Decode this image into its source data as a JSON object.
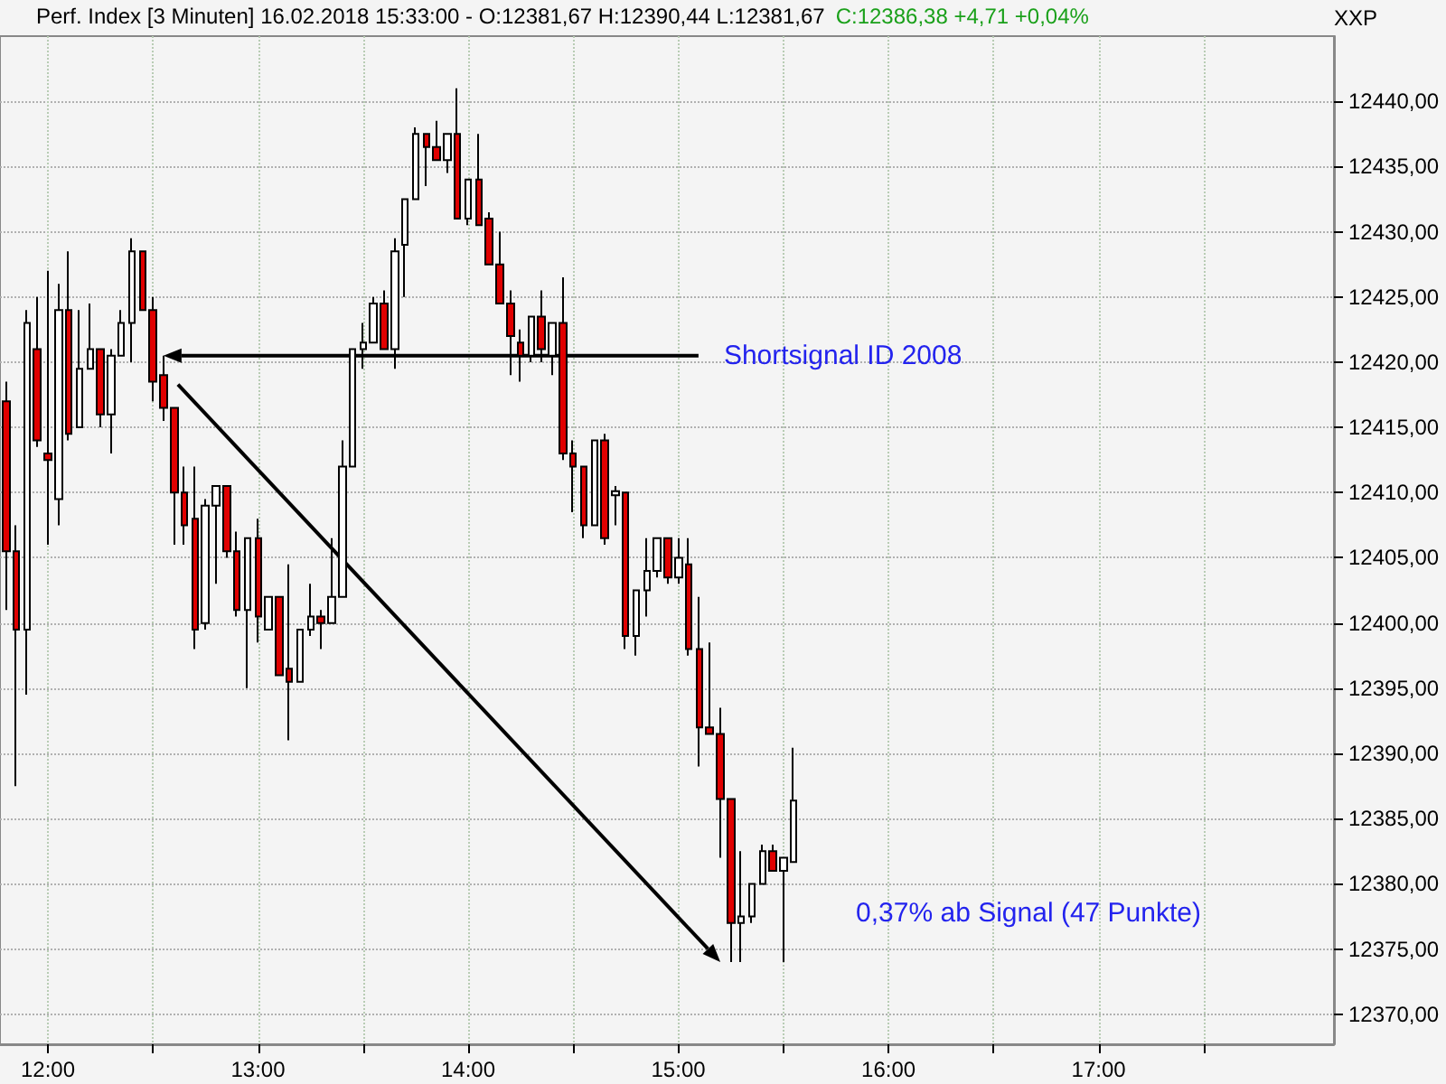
{
  "chart_data": {
    "type": "candlestick",
    "title": "Perf. Index [3 Minuten] 16.02.2018 15:33:00 - O:12381,67 H:12390,44 L:12381,67",
    "subtitle": "C:12386,38 +4,71 +0,04%",
    "ylabel": "XXP",
    "x": [
      11.8,
      11.85,
      11.9,
      11.95,
      12,
      12.05,
      12.1,
      12.15,
      12.2,
      12.25,
      12.3,
      12.35,
      12.4,
      12.45,
      12.5,
      12.55,
      12.6,
      12.65,
      12.7,
      12.75,
      12.8,
      12.85,
      12.9,
      12.95,
      13,
      13.05,
      13.1,
      13.15,
      13.2,
      13.25,
      13.3,
      13.35,
      13.4,
      13.45,
      13.5,
      13.55,
      13.6,
      13.65,
      13.7,
      13.75,
      13.8,
      13.85,
      13.9,
      13.95,
      14,
      14.05,
      14.1,
      14.15,
      14.2,
      14.25,
      14.3,
      14.35,
      14.4,
      14.45,
      14.5,
      14.55,
      14.6,
      14.65,
      14.7,
      14.75,
      14.8,
      14.85,
      14.9,
      14.95,
      15,
      15.05,
      15.1,
      15.15,
      15.2,
      15.25,
      15.3,
      15.35,
      15.4,
      15.45,
      15.5,
      15.55
    ],
    "ohlc": [
      [
        12417,
        12418.5,
        12401,
        12405.5
      ],
      [
        12405.5,
        12407.5,
        12387.5,
        12399.5
      ],
      [
        12399.5,
        12424,
        12394.5,
        12423
      ],
      [
        12421,
        12425,
        12413.5,
        12414
      ],
      [
        12413,
        12427,
        12406,
        12412.5
      ],
      [
        12409.5,
        12426,
        12407.5,
        12424
      ],
      [
        12424,
        12428.5,
        12414,
        12414.5
      ],
      [
        12415,
        12424,
        12415,
        12419.5
      ],
      [
        12419.5,
        12424.5,
        12419.5,
        12421
      ],
      [
        12421,
        12421,
        12415,
        12416
      ],
      [
        12416,
        12421,
        12413,
        12420.5
      ],
      [
        12420.5,
        12424,
        12420.5,
        12423
      ],
      [
        12423,
        12429.5,
        12420,
        12428.5
      ],
      [
        12428.5,
        12428.5,
        12424,
        12424
      ],
      [
        12424,
        12425,
        12417,
        12418.5
      ],
      [
        12419,
        12420.5,
        12415.5,
        12416.5
      ],
      [
        12416.5,
        12416.5,
        12406,
        12410
      ],
      [
        12410,
        12412,
        12406,
        12407.5
      ],
      [
        12408,
        12412,
        12398,
        12399.5
      ],
      [
        12400,
        12409.5,
        12399.5,
        12409
      ],
      [
        12409,
        12410.5,
        12403,
        12410.5
      ],
      [
        12410.5,
        12410.5,
        12405,
        12405.5
      ],
      [
        12405.5,
        12407,
        12400.5,
        12401
      ],
      [
        12401,
        12406.5,
        12395,
        12406.5
      ],
      [
        12406.5,
        12408,
        12398.5,
        12400.5
      ],
      [
        12399.5,
        12402,
        12399.5,
        12402
      ],
      [
        12402,
        12402,
        12396,
        12396
      ],
      [
        12396.5,
        12404.5,
        12391,
        12395.5
      ],
      [
        12395.5,
        12399.5,
        12395.5,
        12399.5
      ],
      [
        12399.5,
        12403,
        12399,
        12400.5
      ],
      [
        12400.5,
        12401,
        12398,
        12400
      ],
      [
        12400,
        12406.5,
        12400,
        12402
      ],
      [
        12402,
        12414,
        12402,
        12412
      ],
      [
        12412,
        12421,
        12412,
        12421
      ],
      [
        12421,
        12423,
        12419.5,
        12421.5
      ],
      [
        12421.5,
        12425,
        12421.5,
        12424.5
      ],
      [
        12424.5,
        12425.5,
        12421,
        12421
      ],
      [
        12421,
        12429.5,
        12419.5,
        12428.5
      ],
      [
        12429,
        12432.5,
        12425,
        12432.5
      ],
      [
        12432.5,
        12438,
        12432.5,
        12437.5
      ],
      [
        12437.5,
        12437.5,
        12433.5,
        12436.5
      ],
      [
        12436.5,
        12438.5,
        12435.5,
        12435.5
      ],
      [
        12435.5,
        12437.5,
        12434.5,
        12437.5
      ],
      [
        12437.5,
        12441,
        12431,
        12431
      ],
      [
        12431,
        12434,
        12430.5,
        12434
      ],
      [
        12434,
        12437.5,
        12430.5,
        12430.5
      ],
      [
        12431,
        12431.5,
        12427.5,
        12427.5
      ],
      [
        12427.5,
        12430,
        12424.5,
        12424.5
      ],
      [
        12424.5,
        12425.5,
        12419,
        12422
      ],
      [
        12421.5,
        12422.5,
        12418.5,
        12420.5
      ],
      [
        12420.5,
        12423.5,
        12420,
        12423.5
      ],
      [
        12423.5,
        12425.5,
        12420,
        12421
      ],
      [
        12420.5,
        12423,
        12419,
        12423
      ],
      [
        12423,
        12426.5,
        12412.5,
        12413
      ],
      [
        12413,
        12414,
        12408.5,
        12412
      ],
      [
        12412,
        12412,
        12406.5,
        12407.5
      ],
      [
        12407.5,
        12414,
        12407.5,
        12414
      ],
      [
        12414,
        12414.5,
        12406,
        12406.5
      ],
      [
        12409.8,
        12410.5,
        12407.5,
        12410.1
      ],
      [
        12410,
        12410,
        12398,
        12399
      ],
      [
        12399,
        12402.5,
        12397.5,
        12402.5
      ],
      [
        12402.5,
        12406.5,
        12400.5,
        12404
      ],
      [
        12404,
        12406.5,
        12403.5,
        12406.5
      ],
      [
        12406.5,
        12406.5,
        12403,
        12403.5
      ],
      [
        12403.5,
        12406.5,
        12403,
        12405
      ],
      [
        12404.5,
        12406.5,
        12397.5,
        12398
      ],
      [
        12398,
        12402,
        12389,
        12392
      ],
      [
        12392,
        12398.5,
        12391.5,
        12391.5
      ],
      [
        12391.5,
        12393.5,
        12382,
        12386.5
      ],
      [
        12386.5,
        12386.5,
        12374,
        12377
      ],
      [
        12377,
        12382.5,
        12374,
        12377.5
      ],
      [
        12377.5,
        12380,
        12377,
        12380
      ],
      [
        12380,
        12383,
        12380,
        12382.5
      ],
      [
        12382.5,
        12383,
        12381,
        12381
      ],
      [
        12381,
        12382,
        12374,
        12382
      ],
      [
        12381.67,
        12390.44,
        12381.67,
        12386.38
      ]
    ],
    "colors": [
      "#e00000",
      "#e00000",
      "#ffffff",
      "#e00000",
      "#e00000",
      "#ffffff",
      "#e00000",
      "#ffffff",
      "#ffffff",
      "#e00000",
      "#ffffff",
      "#ffffff",
      "#ffffff",
      "#e00000",
      "#e00000",
      "#e00000",
      "#e00000",
      "#e00000",
      "#e00000",
      "#ffffff",
      "#ffffff",
      "#e00000",
      "#e00000",
      "#ffffff",
      "#e00000",
      "#ffffff",
      "#e00000",
      "#e00000",
      "#ffffff",
      "#ffffff",
      "#e00000",
      "#ffffff",
      "#ffffff",
      "#ffffff",
      "#ffffff",
      "#ffffff",
      "#e00000",
      "#ffffff",
      "#ffffff",
      "#ffffff",
      "#e00000",
      "#e00000",
      "#ffffff",
      "#e00000",
      "#ffffff",
      "#e00000",
      "#e00000",
      "#e00000",
      "#e00000",
      "#e00000",
      "#ffffff",
      "#e00000",
      "#ffffff",
      "#e00000",
      "#e00000",
      "#e00000",
      "#ffffff",
      "#e00000",
      "#ffffff",
      "#e00000",
      "#ffffff",
      "#ffffff",
      "#ffffff",
      "#e00000",
      "#ffffff",
      "#e00000",
      "#e00000",
      "#e00000",
      "#e00000",
      "#e00000",
      "#ffffff",
      "#ffffff",
      "#ffffff",
      "#e00000",
      "#ffffff",
      "#ffffff"
    ],
    "xlim": [
      11.772,
      18.12
    ],
    "xticks": [
      {
        "value": 12,
        "label": "12:00"
      },
      {
        "value": 12.5,
        "label": null
      },
      {
        "value": 13,
        "label": "13:00"
      },
      {
        "value": 13.5,
        "label": null
      },
      {
        "value": 14,
        "label": "14:00"
      },
      {
        "value": 14.5,
        "label": null
      },
      {
        "value": 15,
        "label": "15:00"
      },
      {
        "value": 15.5,
        "label": null
      },
      {
        "value": 16,
        "label": "16:00"
      },
      {
        "value": 16.5,
        "label": null
      },
      {
        "value": 17,
        "label": "17:00"
      },
      {
        "value": 17.5,
        "label": null
      }
    ],
    "ylim": [
      12367.7,
      12445
    ],
    "yticks": [
      {
        "value": 12370,
        "label": "12370,00"
      },
      {
        "value": 12375,
        "label": "12375,00"
      },
      {
        "value": 12380,
        "label": "12380,00"
      },
      {
        "value": 12385,
        "label": "12385,00"
      },
      {
        "value": 12390,
        "label": "12390,00"
      },
      {
        "value": 12395,
        "label": "12395,00"
      },
      {
        "value": 12400,
        "label": "12400,00"
      },
      {
        "value": 12405,
        "label": "12405,00"
      },
      {
        "value": 12410,
        "label": "12410,00"
      },
      {
        "value": 12415,
        "label": "12415,00"
      },
      {
        "value": 12420,
        "label": "12420,00"
      },
      {
        "value": 12425,
        "label": "12425,00"
      },
      {
        "value": 12430,
        "label": "12430,00"
      },
      {
        "value": 12435,
        "label": "12435,00"
      },
      {
        "value": 12440,
        "label": "12440,00"
      }
    ],
    "grid": true,
    "annotations": [
      "Shortsignal ID 2008",
      "0,37% ab Signal (47 Punkte)"
    ]
  }
}
